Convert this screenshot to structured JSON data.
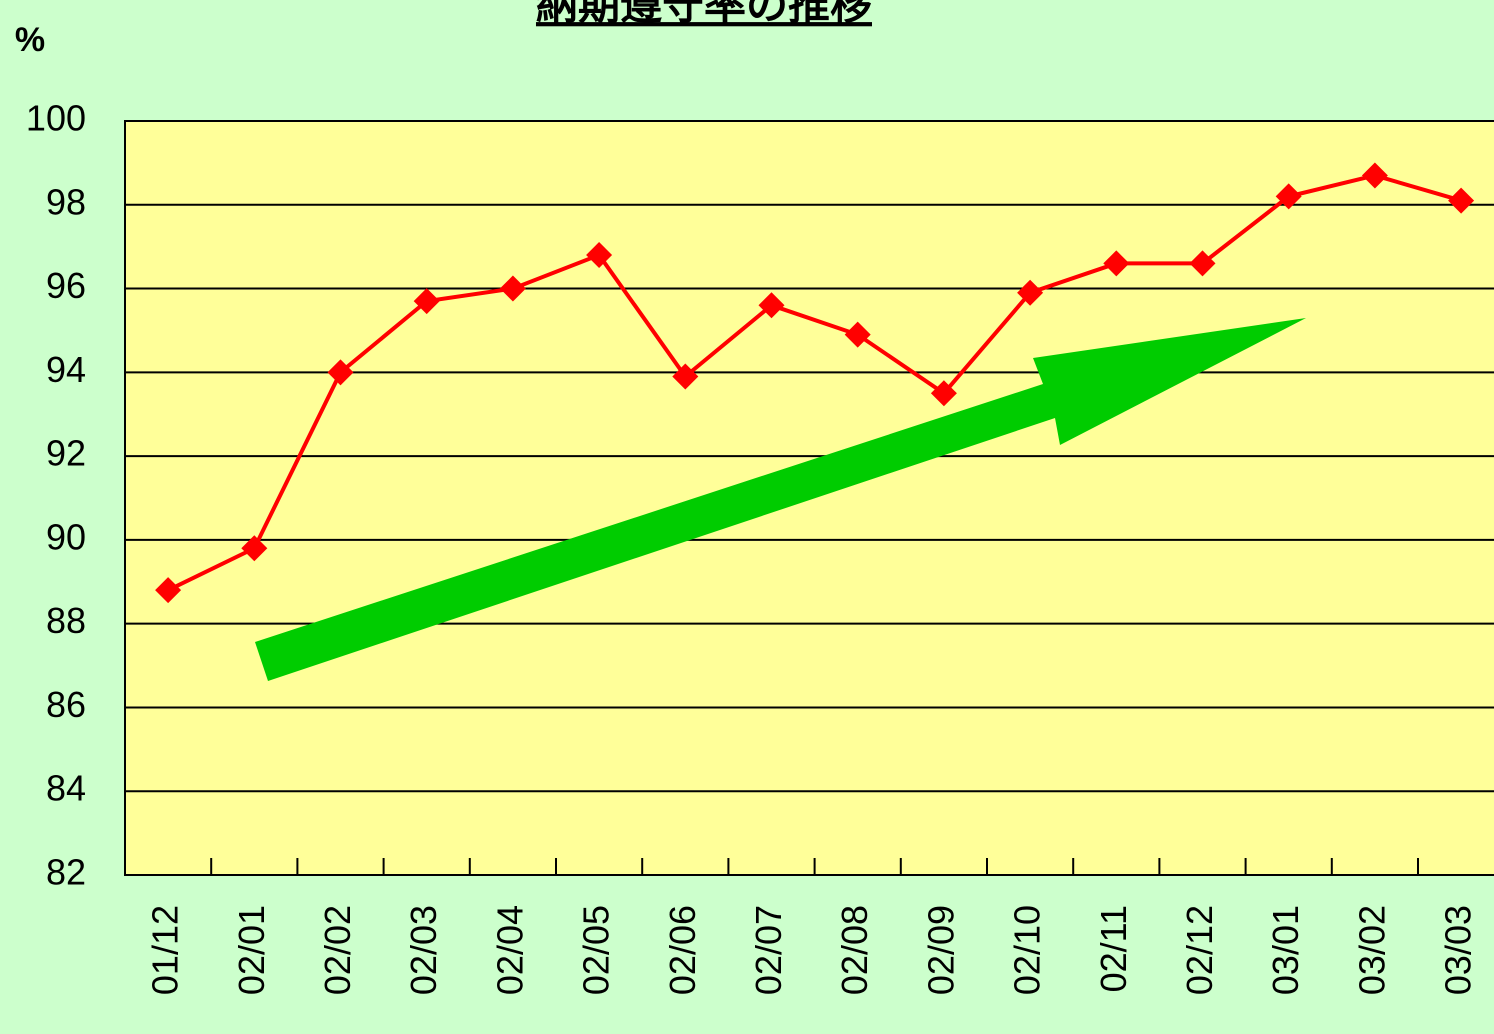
{
  "chart_data": {
    "type": "line",
    "title": "納期遵守率の推移",
    "y_label": "%",
    "categories": [
      "01/12",
      "02/01",
      "02/02",
      "02/03",
      "02/04",
      "02/05",
      "02/06",
      "02/07",
      "02/08",
      "02/09",
      "02/10",
      "02/11",
      "02/12",
      "03/01",
      "03/02",
      "03/03"
    ],
    "series": [
      {
        "name": "納期遵守率",
        "color": "#ff0000",
        "values": [
          88.8,
          89.8,
          94.0,
          95.7,
          96.0,
          96.8,
          93.9,
          95.6,
          94.9,
          93.5,
          95.9,
          96.6,
          96.6,
          98.2,
          98.7,
          98.1
        ]
      }
    ],
    "ylim": [
      82,
      100
    ],
    "yticks": [
      82,
      84,
      86,
      88,
      90,
      92,
      94,
      96,
      98,
      100
    ],
    "grid": true
  }
}
